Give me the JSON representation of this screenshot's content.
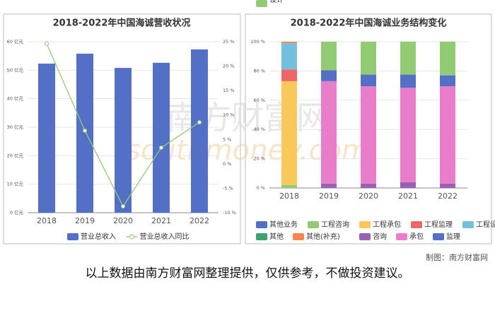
{
  "chart_data": [
    {
      "type": "bar",
      "title": "2018-2022年中国海诚营收状况",
      "categories": [
        "2018",
        "2019",
        "2020",
        "2021",
        "2022"
      ],
      "series": [
        {
          "name": "营业总收入",
          "color": "#5470c6",
          "values": [
            52.3,
            55.8,
            50.8,
            52.6,
            57.3
          ]
        },
        {
          "name": "营业总收入同比",
          "color": "#91cc75",
          "type": "line",
          "axis": "y2",
          "values": [
            24.6,
            6.8,
            -8.7,
            3.3,
            8.5
          ]
        }
      ],
      "ylim": [
        0,
        60
      ],
      "yticks": [
        {
          "value": 0,
          "label": "0 亿元"
        },
        {
          "value": 10,
          "label": "10 亿元"
        },
        {
          "value": 20,
          "label": "20 亿元"
        },
        {
          "value": 30,
          "label": "30 亿元"
        },
        {
          "value": 40,
          "label": "40 亿元"
        },
        {
          "value": 50,
          "label": "50 亿元"
        },
        {
          "value": 60,
          "label": "60 亿元"
        }
      ],
      "y2lim": [
        -10,
        25
      ],
      "y2ticks": [
        {
          "value": -10,
          "label": "-10 %"
        },
        {
          "value": -5,
          "label": "-5 %"
        },
        {
          "value": 0,
          "label": "0 %"
        },
        {
          "value": 5,
          "label": "5 %"
        },
        {
          "value": 10,
          "label": "10 %"
        },
        {
          "value": 15,
          "label": "15 %"
        },
        {
          "value": 20,
          "label": "20 %"
        },
        {
          "value": 25,
          "label": "25 %"
        }
      ],
      "grid": true
    },
    {
      "type": "stacked_bar",
      "title": "2018-2022年中国海诚业务结构变化",
      "categories": [
        "2018",
        "2019",
        "2020",
        "2021",
        "2022"
      ],
      "series": [
        {
          "name": "其他业务",
          "color": "#5470c6",
          "values": [
            null,
            null,
            null,
            null,
            null
          ]
        },
        {
          "name": "工程咨询",
          "color": "#91cc75",
          "values": [
            2,
            null,
            null,
            null,
            null
          ]
        },
        {
          "name": "工程承包",
          "color": "#fac858",
          "values": [
            71,
            null,
            null,
            null,
            null
          ]
        },
        {
          "name": "工程监理",
          "color": "#ee6666",
          "values": [
            8,
            null,
            null,
            null,
            null
          ]
        },
        {
          "name": "工程设计",
          "color": "#73c0de",
          "values": [
            18,
            null,
            null,
            null,
            null
          ]
        },
        {
          "name": "其他",
          "color": "#3ba272",
          "values": [
            null,
            null,
            null,
            null,
            null
          ]
        },
        {
          "name": "其他(补充)",
          "color": "#fc8452",
          "values": [
            1,
            null,
            null,
            null,
            null
          ]
        },
        {
          "name": "咨询",
          "color": "#9a60b4",
          "values": [
            null,
            3,
            3,
            4,
            3
          ]
        },
        {
          "name": "承包",
          "color": "#ea7ccc",
          "values": [
            null,
            70,
            66.5,
            64.5,
            66.5
          ]
        },
        {
          "name": "监理",
          "color": "#5470c6",
          "values": [
            null,
            7.5,
            8,
            9,
            7.5
          ]
        },
        {
          "name": "设计",
          "color": "#91cc75",
          "values": [
            null,
            19.5,
            22.5,
            22.5,
            23
          ]
        }
      ],
      "ylim": [
        0,
        100
      ],
      "yticks": [
        {
          "value": 0,
          "label": "0 %"
        },
        {
          "value": 20,
          "label": "20 %"
        },
        {
          "value": 40,
          "label": "40 %"
        },
        {
          "value": 60,
          "label": "60 %"
        },
        {
          "value": 80,
          "label": "80 %"
        },
        {
          "value": 100,
          "label": "100 %"
        }
      ],
      "grid": true
    }
  ],
  "watermark": [
    "南方财富网",
    "southmoney.com"
  ],
  "credit": "制图：南方财富网",
  "note": "以上数据由南方财富网整理提供，仅供参考，不做投资建议。"
}
